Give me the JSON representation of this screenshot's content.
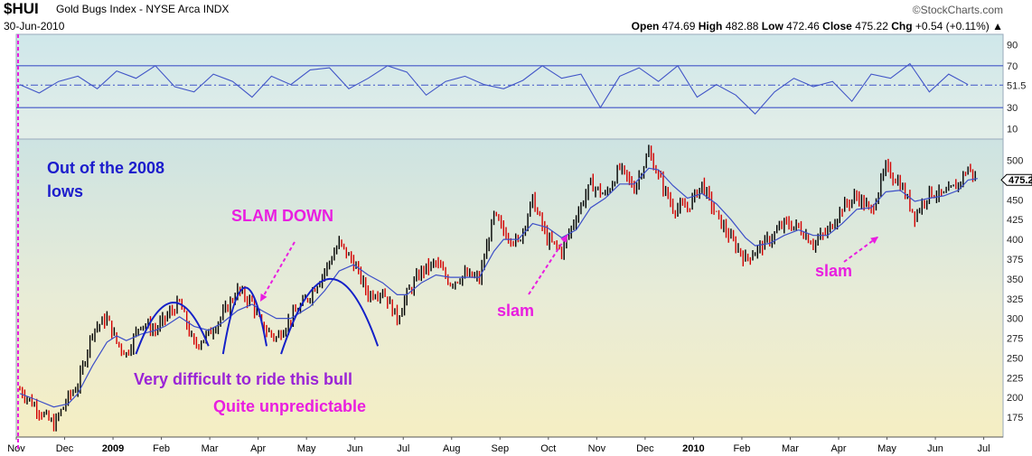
{
  "header": {
    "ticker": "$HUI",
    "index_name": "Gold Bugs Index - NYSE Arca INDX",
    "date": "30-Jun-2010",
    "brand": "©StockCharts.com",
    "open_label": "Open",
    "open": "474.69",
    "high_label": "High",
    "high": "482.88",
    "low_label": "Low",
    "low": "472.46",
    "close_label": "Close",
    "close": "475.22",
    "chg_label": "Chg",
    "chg": "+0.54 (+0.11%)"
  },
  "colors": {
    "price_up": "#000000",
    "price_down": "#d40000",
    "moving_average": "#3d4fc8",
    "rsi_line": "#4155c7",
    "annotation_blue": "#1c1ccc",
    "annotation_magenta": "#e91ee0",
    "annotation_purple": "#9a24d6",
    "arc_blue": "#1420c8"
  },
  "chart_data": {
    "type": "line",
    "title": "$HUI Gold Bugs Index - NYSE Arca INDX",
    "x_ticks": [
      "Nov",
      "Dec",
      "2009",
      "Feb",
      "Mar",
      "Apr",
      "May",
      "Jun",
      "Jul",
      "Aug",
      "Sep",
      "Oct",
      "Nov",
      "Dec",
      "2010",
      "Feb",
      "Mar",
      "Apr",
      "May",
      "Jun",
      "Jul"
    ],
    "rsi_panel": {
      "yticks": [
        10,
        30,
        51.5,
        70,
        90
      ],
      "last_value": "51.5",
      "ylim": [
        0,
        100
      ],
      "x_month_index": [
        0,
        0.4,
        0.8,
        1.2,
        1.6,
        2.0,
        2.4,
        2.8,
        3.2,
        3.6,
        4.0,
        4.4,
        4.8,
        5.2,
        5.6,
        6.0,
        6.4,
        6.8,
        7.2,
        7.6,
        8.0,
        8.4,
        8.8,
        9.2,
        9.6,
        10.0,
        10.4,
        10.8,
        11.2,
        11.6,
        12.0,
        12.4,
        12.8,
        13.2,
        13.6,
        14.0,
        14.4,
        14.8,
        15.2,
        15.6,
        16.0,
        16.4,
        16.8,
        17.2,
        17.6,
        18.0,
        18.4,
        18.8,
        19.2,
        19.6
      ],
      "values": [
        52,
        44,
        55,
        60,
        48,
        65,
        58,
        70,
        50,
        45,
        62,
        55,
        40,
        60,
        52,
        66,
        68,
        48,
        58,
        70,
        64,
        42,
        55,
        60,
        52,
        48,
        56,
        70,
        58,
        62,
        30,
        60,
        68,
        55,
        70,
        40,
        52,
        42,
        24,
        45,
        58,
        50,
        55,
        36,
        62,
        58,
        72,
        45,
        62,
        52
      ]
    },
    "price_panel": {
      "yticks": [
        175,
        200,
        225,
        250,
        275,
        300,
        325,
        350,
        375,
        400,
        425,
        450,
        475,
        500
      ],
      "ylim": [
        150,
        520
      ],
      "last_value": "475.22",
      "x_month_index": [
        0,
        0.3,
        0.7,
        1.0,
        1.2,
        1.5,
        1.8,
        2.0,
        2.2,
        2.5,
        2.8,
        3.0,
        3.3,
        3.6,
        3.9,
        4.2,
        4.5,
        4.8,
        5.0,
        5.3,
        5.6,
        6.0,
        6.3,
        6.6,
        6.9,
        7.2,
        7.5,
        7.8,
        8.0,
        8.3,
        8.6,
        8.9,
        9.2,
        9.5,
        9.8,
        10.0,
        10.3,
        10.6,
        10.9,
        11.2,
        11.5,
        11.8,
        12.1,
        12.4,
        12.7,
        13.0,
        13.2,
        13.5,
        13.8,
        14.1,
        14.4,
        14.7,
        15.0,
        15.2,
        15.5,
        15.8,
        16.1,
        16.4,
        16.7,
        17.0,
        17.3,
        17.6,
        17.9,
        18.2,
        18.5,
        18.8,
        19.1,
        19.4,
        19.6,
        19.8
      ],
      "close": [
        210,
        190,
        165,
        200,
        215,
        285,
        300,
        270,
        255,
        295,
        285,
        300,
        320,
        265,
        280,
        305,
        335,
        320,
        290,
        275,
        300,
        330,
        360,
        395,
        370,
        330,
        335,
        300,
        330,
        360,
        370,
        345,
        355,
        350,
        430,
        410,
        395,
        450,
        400,
        385,
        430,
        470,
        455,
        490,
        465,
        510,
        480,
        440,
        440,
        470,
        430,
        400,
        375,
        385,
        400,
        420,
        415,
        395,
        410,
        440,
        455,
        435,
        490,
        470,
        430,
        460,
        455,
        470,
        490,
        475
      ],
      "ma_close": [
        205,
        198,
        188,
        192,
        205,
        240,
        270,
        278,
        272,
        280,
        285,
        290,
        302,
        290,
        285,
        295,
        310,
        318,
        310,
        300,
        300,
        315,
        335,
        360,
        368,
        355,
        345,
        330,
        330,
        345,
        355,
        352,
        352,
        352,
        385,
        400,
        400,
        420,
        415,
        402,
        412,
        440,
        452,
        470,
        470,
        490,
        488,
        468,
        452,
        458,
        445,
        425,
        402,
        392,
        395,
        405,
        412,
        405,
        405,
        420,
        438,
        440,
        460,
        462,
        448,
        452,
        455,
        462,
        475,
        477
      ]
    },
    "annotations": {
      "out_of_lows": "Out of the 2008\nlows",
      "slam_down": "SLAM DOWN",
      "slam1": "slam",
      "slam2": "slam",
      "difficult": "Very difficult to ride this bull",
      "unpredictable": "Quite unpredictable"
    }
  }
}
